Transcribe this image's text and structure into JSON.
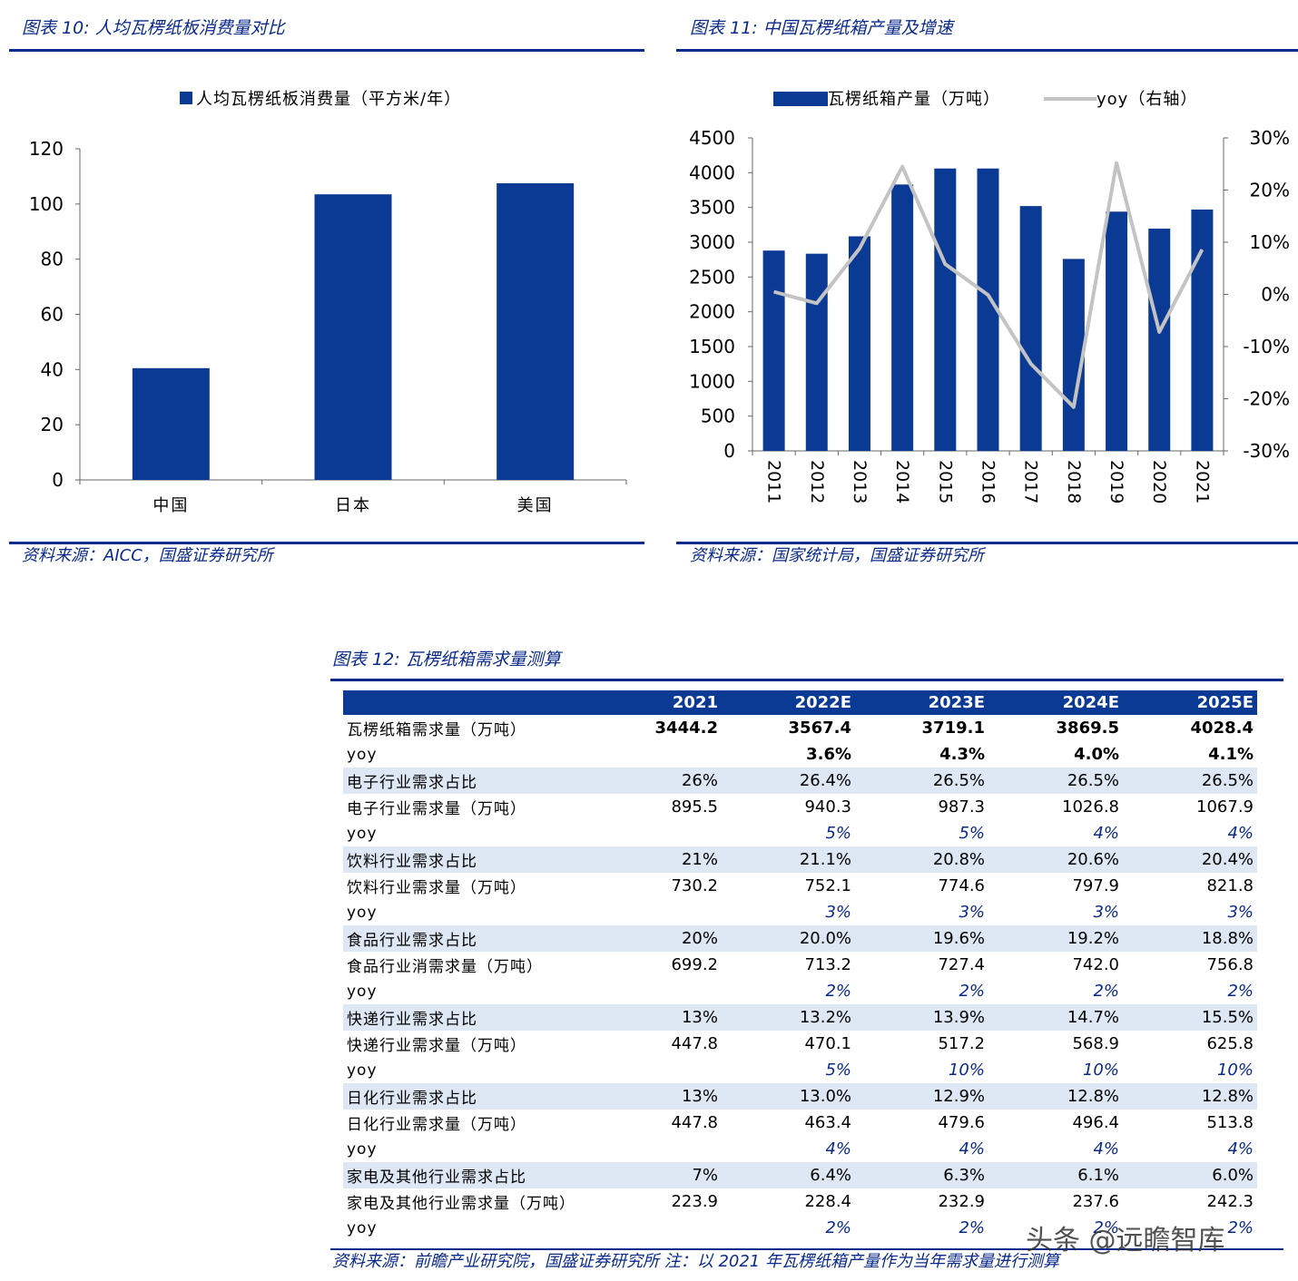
{
  "fig10": {
    "title": "图表 10:  人均瓦楞纸板消费量对比",
    "source": "资料来源：AICC，国盛证券研究所"
  },
  "fig11": {
    "title": "图表 11:  中国瓦楞纸箱产量及增速",
    "source": "资料来源：国家统计局，国盛证券研究所"
  },
  "fig12": {
    "title": "图表 12:  瓦楞纸箱需求量测算",
    "source": "资料来源：前瞻产业研究院，国盛证券研究所  注：以 2021 年瓦楞纸箱产量作为当年需求量进行测算"
  },
  "watermark": "头条 @远瞻智库",
  "colors": {
    "accent": "#0b2a8c",
    "bar": "#0b3a95",
    "line": "#c3c3c3",
    "row_alt": "#dde8f4"
  },
  "chart_data": [
    {
      "type": "bar",
      "categories": [
        "中国",
        "日本",
        "美国"
      ],
      "series": [
        {
          "name": "人均瓦楞纸板消费量（平方米/年）",
          "values": [
            40.5,
            103.5,
            107.5
          ]
        }
      ],
      "ylim": [
        0,
        120
      ],
      "yticks": [
        "0",
        "20",
        "40",
        "60",
        "80",
        "100",
        "120"
      ],
      "legend": "top-center",
      "grid": false
    },
    {
      "type": "bar",
      "categories": [
        "2011",
        "2012",
        "2013",
        "2014",
        "2015",
        "2016",
        "2017",
        "2018",
        "2019",
        "2020",
        "2021"
      ],
      "series": [
        {
          "name": "瓦楞纸箱产量（万吨）",
          "type": "bar",
          "axis": "left",
          "values": [
            2880,
            2835,
            3085,
            3830,
            4060,
            4060,
            3520,
            2760,
            3440,
            3195,
            3470
          ]
        },
        {
          "name": "yoy（右轴）",
          "type": "line",
          "axis": "right",
          "values": [
            0.005,
            -0.017,
            0.088,
            0.245,
            0.058,
            -0.001,
            -0.133,
            -0.216,
            0.252,
            -0.072,
            0.086
          ]
        }
      ],
      "ylim": [
        0,
        4500
      ],
      "yticks": [
        "0",
        "500",
        "1000",
        "1500",
        "2000",
        "2500",
        "3000",
        "3500",
        "4000",
        "4500"
      ],
      "y2lim": [
        -0.3,
        0.3
      ],
      "y2ticks": [
        "-30%",
        "-20%",
        "-10%",
        "0%",
        "10%",
        "20%",
        "30%"
      ],
      "legend": "top-center",
      "grid": false
    },
    {
      "type": "table",
      "columns": [
        "",
        "2021",
        "2022E",
        "2023E",
        "2024E",
        "2025E"
      ],
      "rows": [
        {
          "label": "瓦楞纸箱需求量（万吨）",
          "values": [
            "3444.2",
            "3567.4",
            "3719.1",
            "3869.5",
            "4028.4"
          ],
          "style": "bold"
        },
        {
          "label": "yoy",
          "values": [
            "",
            "3.6%",
            "4.3%",
            "4.0%",
            "4.1%"
          ],
          "style": "bold"
        },
        {
          "label": "电子行业需求占比",
          "values": [
            "26%",
            "26.4%",
            "26.5%",
            "26.5%",
            "26.5%"
          ],
          "style": "alt"
        },
        {
          "label": "电子行业需求量（万吨）",
          "values": [
            "895.5",
            "940.3",
            "987.3",
            "1026.8",
            "1067.9"
          ],
          "style": ""
        },
        {
          "label": "yoy",
          "values": [
            "",
            "5%",
            "5%",
            "4%",
            "4%"
          ],
          "style": "pct"
        },
        {
          "label": "饮料行业需求占比",
          "values": [
            "21%",
            "21.1%",
            "20.8%",
            "20.6%",
            "20.4%"
          ],
          "style": "alt"
        },
        {
          "label": "饮料行业需求量（万吨）",
          "values": [
            "730.2",
            "752.1",
            "774.6",
            "797.9",
            "821.8"
          ],
          "style": ""
        },
        {
          "label": "yoy",
          "values": [
            "",
            "3%",
            "3%",
            "3%",
            "3%"
          ],
          "style": "pct"
        },
        {
          "label": "食品行业需求占比",
          "values": [
            "20%",
            "20.0%",
            "19.6%",
            "19.2%",
            "18.8%"
          ],
          "style": "alt"
        },
        {
          "label": "食品行业消需求量（万吨）",
          "values": [
            "699.2",
            "713.2",
            "727.4",
            "742.0",
            "756.8"
          ],
          "style": ""
        },
        {
          "label": "yoy",
          "values": [
            "",
            "2%",
            "2%",
            "2%",
            "2%"
          ],
          "style": "pct"
        },
        {
          "label": "快递行业需求占比",
          "values": [
            "13%",
            "13.2%",
            "13.9%",
            "14.7%",
            "15.5%"
          ],
          "style": "alt"
        },
        {
          "label": "快递行业需求量（万吨）",
          "values": [
            "447.8",
            "470.1",
            "517.2",
            "568.9",
            "625.8"
          ],
          "style": ""
        },
        {
          "label": "yoy",
          "values": [
            "",
            "5%",
            "10%",
            "10%",
            "10%"
          ],
          "style": "pct"
        },
        {
          "label": "日化行业需求占比",
          "values": [
            "13%",
            "13.0%",
            "12.9%",
            "12.8%",
            "12.8%"
          ],
          "style": "alt"
        },
        {
          "label": "日化行业需求量（万吨）",
          "values": [
            "447.8",
            "463.4",
            "479.6",
            "496.4",
            "513.8"
          ],
          "style": ""
        },
        {
          "label": "yoy",
          "values": [
            "",
            "4%",
            "4%",
            "4%",
            "4%"
          ],
          "style": "pct"
        },
        {
          "label": "家电及其他行业需求占比",
          "values": [
            "7%",
            "6.4%",
            "6.3%",
            "6.1%",
            "6.0%"
          ],
          "style": "alt"
        },
        {
          "label": "家电及其他行业需求量（万吨）",
          "values": [
            "223.9",
            "228.4",
            "232.9",
            "237.6",
            "242.3"
          ],
          "style": ""
        },
        {
          "label": "yoy",
          "values": [
            "",
            "2%",
            "2%",
            "2%",
            "2%"
          ],
          "style": "pct"
        }
      ]
    }
  ]
}
